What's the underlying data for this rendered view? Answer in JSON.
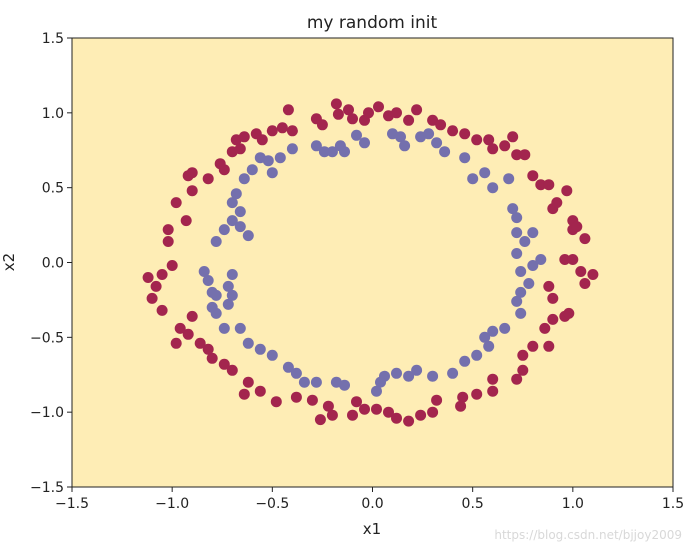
{
  "chart_data": {
    "type": "scatter",
    "title": "my random init",
    "xlabel": "x1",
    "ylabel": "x2",
    "xlim": [
      -1.5,
      1.5
    ],
    "ylim": [
      -1.5,
      1.5
    ],
    "xticks": [
      -1.5,
      -1.0,
      -0.5,
      0.0,
      0.5,
      1.0,
      1.5
    ],
    "yticks": [
      -1.5,
      -1.0,
      -0.5,
      0.0,
      0.5,
      1.0,
      1.5
    ],
    "xtick_labels": [
      "−1.5",
      "−1.0",
      "−0.5",
      "0.0",
      "0.5",
      "1.0",
      "1.5"
    ],
    "ytick_labels": [
      "−1.5",
      "−1.0",
      "−0.5",
      "0.0",
      "0.5",
      "1.0",
      "1.5"
    ],
    "grid": false,
    "background_color": "#feedb5",
    "series": [
      {
        "color": "#a3254e",
        "points": [
          [
            -1.12,
            -0.1
          ],
          [
            -1.08,
            -0.16
          ],
          [
            -1.1,
            -0.24
          ],
          [
            -1.05,
            -0.32
          ],
          [
            -1.05,
            -0.08
          ],
          [
            -1.0,
            -0.02
          ],
          [
            -1.02,
            0.22
          ],
          [
            -1.02,
            0.14
          ],
          [
            -0.98,
            0.4
          ],
          [
            -0.93,
            0.28
          ],
          [
            -0.9,
            0.48
          ],
          [
            -0.92,
            0.58
          ],
          [
            -0.9,
            0.6
          ],
          [
            -0.82,
            0.56
          ],
          [
            -0.76,
            0.66
          ],
          [
            -0.74,
            0.62
          ],
          [
            -0.7,
            0.74
          ],
          [
            -0.66,
            0.76
          ],
          [
            -0.68,
            0.82
          ],
          [
            -0.64,
            0.84
          ],
          [
            -0.58,
            0.86
          ],
          [
            -0.55,
            0.82
          ],
          [
            -0.5,
            0.88
          ],
          [
            -0.45,
            0.9
          ],
          [
            -0.42,
            1.02
          ],
          [
            -0.4,
            0.88
          ],
          [
            -0.28,
            0.96
          ],
          [
            -0.25,
            0.92
          ],
          [
            -0.18,
            1.06
          ],
          [
            -0.17,
            0.99
          ],
          [
            -0.12,
            1.02
          ],
          [
            -0.1,
            0.96
          ],
          [
            -0.04,
            0.95
          ],
          [
            -0.02,
            1.0
          ],
          [
            0.03,
            1.04
          ],
          [
            0.08,
            0.98
          ],
          [
            0.12,
            1.0
          ],
          [
            0.18,
            0.95
          ],
          [
            0.22,
            1.02
          ],
          [
            0.3,
            0.95
          ],
          [
            0.34,
            0.92
          ],
          [
            0.4,
            0.88
          ],
          [
            0.46,
            0.86
          ],
          [
            0.52,
            0.82
          ],
          [
            0.58,
            0.82
          ],
          [
            0.6,
            0.76
          ],
          [
            0.66,
            0.78
          ],
          [
            0.7,
            0.84
          ],
          [
            0.72,
            0.72
          ],
          [
            0.76,
            0.72
          ],
          [
            0.8,
            0.58
          ],
          [
            0.84,
            0.52
          ],
          [
            0.88,
            0.52
          ],
          [
            0.9,
            0.36
          ],
          [
            0.92,
            0.4
          ],
          [
            0.97,
            0.48
          ],
          [
            1.0,
            0.22
          ],
          [
            1.0,
            0.28
          ],
          [
            1.02,
            0.24
          ],
          [
            1.06,
            0.16
          ],
          [
            0.96,
            0.02
          ],
          [
            1.0,
            0.02
          ],
          [
            1.04,
            -0.06
          ],
          [
            1.1,
            -0.08
          ],
          [
            1.06,
            -0.14
          ],
          [
            0.88,
            -0.16
          ],
          [
            0.9,
            -0.24
          ],
          [
            0.96,
            -0.36
          ],
          [
            0.98,
            -0.34
          ],
          [
            0.86,
            -0.44
          ],
          [
            0.9,
            -0.38
          ],
          [
            0.88,
            -0.56
          ],
          [
            0.8,
            -0.56
          ],
          [
            0.75,
            -0.62
          ],
          [
            0.75,
            -0.72
          ],
          [
            0.72,
            -0.78
          ],
          [
            0.6,
            -0.78
          ],
          [
            0.6,
            -0.86
          ],
          [
            0.52,
            -0.88
          ],
          [
            0.45,
            -0.9
          ],
          [
            0.44,
            -0.96
          ],
          [
            0.32,
            -0.92
          ],
          [
            0.3,
            -1.0
          ],
          [
            0.24,
            -1.02
          ],
          [
            0.18,
            -1.06
          ],
          [
            0.12,
            -1.04
          ],
          [
            0.08,
            -1.0
          ],
          [
            0.02,
            -0.98
          ],
          [
            -0.04,
            -0.98
          ],
          [
            -0.08,
            -0.93
          ],
          [
            -0.1,
            -1.02
          ],
          [
            -0.2,
            -1.02
          ],
          [
            -0.22,
            -0.96
          ],
          [
            -0.26,
            -1.05
          ],
          [
            -0.3,
            -0.92
          ],
          [
            -0.38,
            -0.9
          ],
          [
            -0.48,
            -0.93
          ],
          [
            -0.56,
            -0.86
          ],
          [
            -0.62,
            -0.8
          ],
          [
            -0.64,
            -0.88
          ],
          [
            -0.7,
            -0.72
          ],
          [
            -0.74,
            -0.68
          ],
          [
            -0.8,
            -0.64
          ],
          [
            -0.82,
            -0.58
          ],
          [
            -0.86,
            -0.54
          ],
          [
            -0.92,
            -0.48
          ],
          [
            -0.98,
            -0.54
          ],
          [
            -0.96,
            -0.44
          ],
          [
            -0.9,
            -0.36
          ]
        ]
      },
      {
        "color": "#7470ad",
        "points": [
          [
            -0.84,
            -0.06
          ],
          [
            -0.82,
            -0.12
          ],
          [
            -0.8,
            -0.2
          ],
          [
            -0.78,
            -0.22
          ],
          [
            -0.8,
            -0.3
          ],
          [
            -0.78,
            -0.34
          ],
          [
            -0.74,
            -0.44
          ],
          [
            -0.72,
            -0.16
          ],
          [
            -0.72,
            -0.28
          ],
          [
            -0.7,
            -0.22
          ],
          [
            -0.7,
            -0.08
          ],
          [
            -0.78,
            0.14
          ],
          [
            -0.74,
            0.22
          ],
          [
            -0.7,
            0.28
          ],
          [
            -0.66,
            0.34
          ],
          [
            -0.66,
            0.24
          ],
          [
            -0.62,
            0.18
          ],
          [
            -0.68,
            0.46
          ],
          [
            -0.7,
            0.4
          ],
          [
            -0.64,
            0.56
          ],
          [
            -0.6,
            0.62
          ],
          [
            -0.56,
            0.7
          ],
          [
            -0.52,
            0.68
          ],
          [
            -0.5,
            0.6
          ],
          [
            -0.46,
            0.7
          ],
          [
            -0.4,
            0.76
          ],
          [
            -0.28,
            0.78
          ],
          [
            -0.24,
            0.74
          ],
          [
            -0.2,
            0.74
          ],
          [
            -0.16,
            0.78
          ],
          [
            -0.14,
            0.74
          ],
          [
            -0.08,
            0.85
          ],
          [
            -0.04,
            0.8
          ],
          [
            0.1,
            0.86
          ],
          [
            0.14,
            0.84
          ],
          [
            0.16,
            0.78
          ],
          [
            0.24,
            0.84
          ],
          [
            0.28,
            0.86
          ],
          [
            0.32,
            0.8
          ],
          [
            0.36,
            0.74
          ],
          [
            0.46,
            0.7
          ],
          [
            0.5,
            0.56
          ],
          [
            0.56,
            0.6
          ],
          [
            0.6,
            0.5
          ],
          [
            0.68,
            0.56
          ],
          [
            0.7,
            0.36
          ],
          [
            0.72,
            0.3
          ],
          [
            0.72,
            0.2
          ],
          [
            0.76,
            0.14
          ],
          [
            0.8,
            0.2
          ],
          [
            0.72,
            0.06
          ],
          [
            0.74,
            -0.06
          ],
          [
            0.8,
            -0.02
          ],
          [
            0.84,
            0.02
          ],
          [
            0.78,
            -0.14
          ],
          [
            0.74,
            -0.2
          ],
          [
            0.72,
            -0.26
          ],
          [
            0.74,
            -0.34
          ],
          [
            0.66,
            -0.44
          ],
          [
            0.6,
            -0.46
          ],
          [
            0.56,
            -0.5
          ],
          [
            0.58,
            -0.56
          ],
          [
            0.52,
            -0.62
          ],
          [
            0.46,
            -0.66
          ],
          [
            0.4,
            -0.74
          ],
          [
            0.3,
            -0.76
          ],
          [
            0.22,
            -0.72
          ],
          [
            0.18,
            -0.76
          ],
          [
            0.12,
            -0.74
          ],
          [
            0.06,
            -0.76
          ],
          [
            0.04,
            -0.8
          ],
          [
            0.02,
            -0.86
          ],
          [
            -0.14,
            -0.82
          ],
          [
            -0.18,
            -0.8
          ],
          [
            -0.28,
            -0.8
          ],
          [
            -0.34,
            -0.8
          ],
          [
            -0.38,
            -0.74
          ],
          [
            -0.42,
            -0.7
          ],
          [
            -0.5,
            -0.62
          ],
          [
            -0.56,
            -0.58
          ],
          [
            -0.62,
            -0.54
          ],
          [
            -0.66,
            -0.44
          ]
        ]
      }
    ]
  },
  "watermark": "https://blog.csdn.net/bjjoy2009"
}
